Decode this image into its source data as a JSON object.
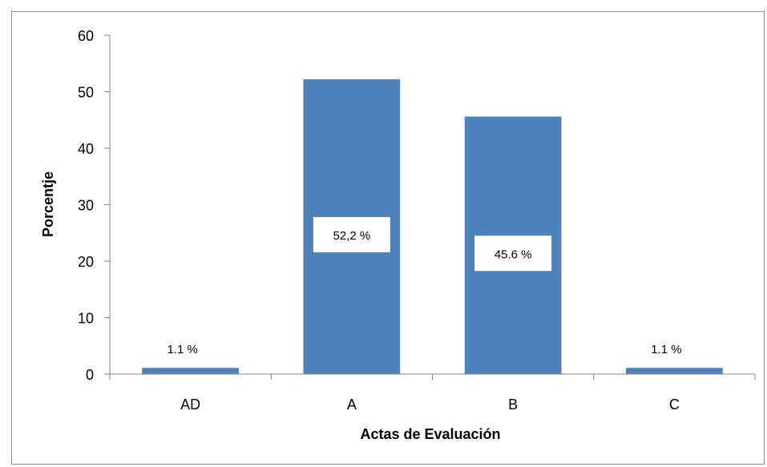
{
  "chart_data": {
    "type": "bar",
    "title": "",
    "xlabel": "Actas de Evaluación",
    "ylabel": "Porcentje",
    "categories": [
      "AD",
      "A",
      "B",
      "C"
    ],
    "values": [
      1.1,
      52.2,
      45.6,
      1.1
    ],
    "data_labels": [
      "1.1 %",
      "52,2 %",
      "45.6 %",
      "1.1 %"
    ],
    "ylim": [
      0,
      60
    ],
    "yticks": [
      0,
      10,
      20,
      30,
      40,
      50,
      60
    ],
    "grid": false,
    "legend": "none",
    "colors": {
      "bar": "#4f81bd",
      "axis": "#868686",
      "label_box": "#ffffff"
    }
  }
}
